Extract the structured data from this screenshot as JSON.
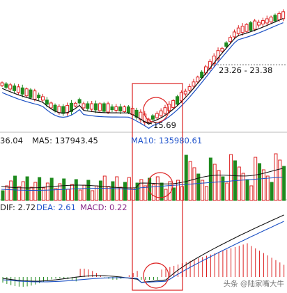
{
  "chart_data": [
    {
      "panel": "price",
      "type": "candlestick",
      "annotations": {
        "range_label": "23.26 - 23.38",
        "low_label": "15.69"
      },
      "colors": {
        "up": "#dd2222",
        "down": "#1e8a1e",
        "ma5": "#111111",
        "ma10": "#1a4fc4",
        "highlight": "#dd2222"
      }
    },
    {
      "panel": "volume",
      "type": "bar",
      "header": {
        "vol_partial": "36.04",
        "ma5": "MA5: 137943.45",
        "ma10": "MA10: 135980.61"
      }
    },
    {
      "panel": "macd",
      "type": "histogram",
      "header": {
        "dif": "DIF: 2.72",
        "dea": "DEA: 2.61",
        "macd": "MACD: 0.22"
      },
      "values": {
        "DIF": 2.72,
        "DEA": 2.61,
        "MACD": 0.22
      }
    }
  ],
  "watermark": "头条 @陆家嘴大牛"
}
